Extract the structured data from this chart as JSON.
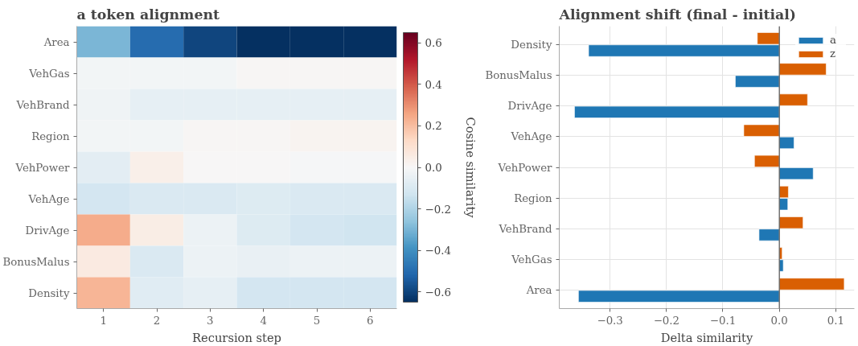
{
  "chart_data": [
    {
      "type": "heatmap",
      "title": "a token alignment",
      "xlabel": "Recursion step",
      "clabel": "Cosine similarity",
      "categories": [
        "1",
        "2",
        "3",
        "4",
        "5",
        "6"
      ],
      "y_categories": [
        "Area",
        "VehGas",
        "VehBrand",
        "Region",
        "VehPower",
        "VehAge",
        "DrivAge",
        "BonusMalus",
        "Density"
      ],
      "cells": [
        [
          -0.3,
          -0.5,
          -0.6,
          -0.65,
          -0.65,
          -0.65
        ],
        [
          -0.02,
          -0.02,
          -0.02,
          0.01,
          0.01,
          0.01
        ],
        [
          -0.03,
          -0.06,
          -0.06,
          -0.06,
          -0.06,
          -0.06
        ],
        [
          -0.02,
          -0.02,
          0.01,
          0.01,
          0.02,
          0.02
        ],
        [
          -0.07,
          0.04,
          0.0,
          0.0,
          -0.01,
          -0.01
        ],
        [
          -0.12,
          -0.1,
          -0.1,
          -0.09,
          -0.1,
          -0.1
        ],
        [
          0.24,
          0.05,
          -0.04,
          -0.09,
          -0.12,
          -0.13
        ],
        [
          0.06,
          -0.1,
          -0.04,
          -0.05,
          -0.04,
          -0.04
        ],
        [
          0.22,
          -0.08,
          -0.06,
          -0.12,
          -0.12,
          -0.12
        ]
      ],
      "clim": [
        -0.65,
        0.65
      ],
      "cticks": [
        {
          "value": -0.6,
          "label": "−0.6"
        },
        {
          "value": -0.4,
          "label": "−0.4"
        },
        {
          "value": -0.2,
          "label": "−0.2"
        },
        {
          "value": 0,
          "label": "0.0"
        },
        0.2,
        0.4,
        0.6
      ]
    },
    {
      "type": "bar",
      "orientation": "horizontal",
      "title": "Alignment shift (final - initial)",
      "xlabel": "Delta similarity",
      "categories": [
        "Density",
        "BonusMalus",
        "DrivAge",
        "VehAge",
        "VehPower",
        "Region",
        "VehBrand",
        "VehGas",
        "Area"
      ],
      "series": [
        {
          "name": "a",
          "color": "#1f77b4",
          "values": [
            -0.338,
            -0.078,
            -0.363,
            0.026,
            0.06,
            0.015,
            -0.036,
            0.007,
            -0.356
          ]
        },
        {
          "name": "z",
          "color": "#d95f02",
          "values": [
            -0.039,
            0.083,
            0.05,
            -0.063,
            -0.044,
            0.016,
            0.042,
            0.005,
            0.115
          ]
        }
      ],
      "xlim": [
        -0.39,
        0.133
      ],
      "xticks": [
        {
          "value": -0.3,
          "label": "−0.3"
        },
        {
          "value": -0.2,
          "label": "−0.2"
        },
        {
          "value": -0.1,
          "label": "−0.1"
        },
        {
          "value": 0,
          "label": "0.0"
        },
        0.1
      ],
      "ref_lines": [
        {
          "axis": "x",
          "value": 0,
          "color": "#555555"
        }
      ],
      "grid": true,
      "legend": "top right"
    }
  ]
}
